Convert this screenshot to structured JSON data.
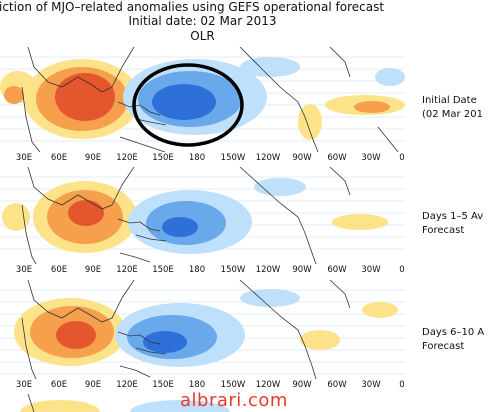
{
  "header": {
    "title_line1": "ediction of MJO–related anomalies using GEFS operational forecast",
    "title_line2": "Initial date: 02 Mar 2013",
    "title_line3": "OLR"
  },
  "longitude_ticks": [
    "30E",
    "60E",
    "90E",
    "120E",
    "150E",
    "180",
    "150W",
    "120W",
    "90W",
    "60W",
    "30W",
    "0"
  ],
  "panels": [
    {
      "label_line1": "Initial Date",
      "label_line2": "(02 Mar 201"
    },
    {
      "label_line1": "Days 1–5 Av",
      "label_line2": "Forecast"
    },
    {
      "label_line1": "Days 6–10 A",
      "label_line2": "Forecast"
    }
  ],
  "annotation": "black ellipse circling the blue (negative OLR) anomaly over the western Pacific in the initial-date panel",
  "watermark": "albrari.com",
  "colors": {
    "positive_strong": "#e4572e",
    "positive_mid": "#f6a04d",
    "positive_light": "#fce38a",
    "negative_strong": "#2f6fd8",
    "negative_mid": "#6aa8ec",
    "negative_light": "#bfe0fa",
    "coastline": "#333333",
    "watermark": "#e83a2a"
  }
}
